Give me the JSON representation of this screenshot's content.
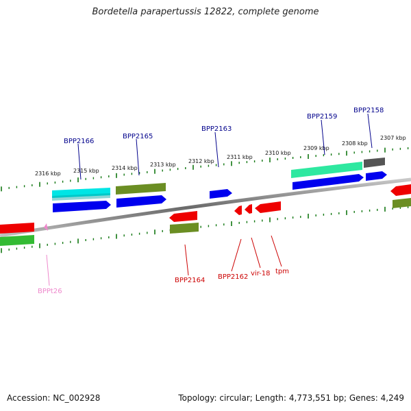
{
  "title": "Bordetella parapertussis 12822, complete genome",
  "footer": {
    "accession": "Accession: NC_002928",
    "summary": "Topology: circular; Length: 4,773,551 bp; Genes: 4,249"
  },
  "colors": {
    "backbone": "#888888",
    "ticks": "#117711",
    "forward_label": "#00008b",
    "reverse_label": "#cc0000",
    "trna_label": "#ee88cc"
  },
  "scale_labels": [
    "2316 kbp",
    "2315 kbp",
    "2314 kbp",
    "2313 kbp",
    "2312 kbp",
    "2311 kbp",
    "2310 kbp",
    "2309 kbp",
    "2308 kbp",
    "2307 kbp"
  ],
  "genes": {
    "forward": [
      {
        "label": "BPP2166"
      },
      {
        "label": "BPP2165"
      },
      {
        "label": "BPP2163"
      },
      {
        "label": "BPP2159"
      },
      {
        "label": "BPP2158"
      }
    ],
    "reverse": [
      {
        "label": "BPP2164"
      },
      {
        "label": "BPP2162"
      },
      {
        "label": "vir-18"
      },
      {
        "label": "tpm"
      }
    ],
    "trna": [
      {
        "label": "BPPt26"
      }
    ]
  }
}
